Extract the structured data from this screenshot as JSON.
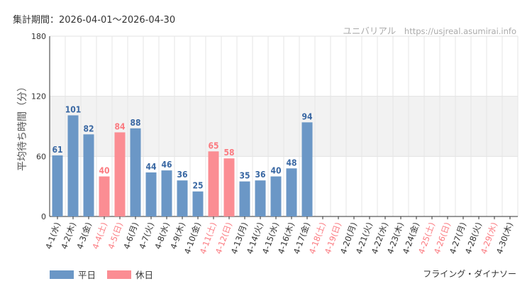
{
  "period_label": "集計期間：2026-04-01～2026-04-30",
  "site": {
    "name": "ユニバリアル",
    "url": "https://usjreal.asumirai.info"
  },
  "attraction_name": "フライング・ダイナソー",
  "colors": {
    "weekday": "#6b97c6",
    "holiday": "#fb8d93",
    "weekday_text": "#3a68a3",
    "holiday_text": "#fb7a80"
  },
  "legend": [
    {
      "label": "平日",
      "kind": "weekday"
    },
    {
      "label": "休日",
      "kind": "holiday"
    }
  ],
  "chart_data": {
    "type": "bar",
    "title": "",
    "xlabel": "",
    "ylabel": "平均待ち時間（分）",
    "ylim": [
      0,
      180
    ],
    "yticks": [
      0,
      60,
      120,
      180
    ],
    "categories": [
      "4-1(水)",
      "4-2(木)",
      "4-3(金)",
      "4-4(土)",
      "4-5(日)",
      "4-6(月)",
      "4-7(火)",
      "4-8(水)",
      "4-9(木)",
      "4-10(金)",
      "4-11(土)",
      "4-12(日)",
      "4-13(月)",
      "4-14(火)",
      "4-15(水)",
      "4-16(木)",
      "4-17(金)",
      "4-18(土)",
      "4-19(日)",
      "4-20(月)",
      "4-21(火)",
      "4-22(水)",
      "4-23(木)",
      "4-24(金)",
      "4-25(土)",
      "4-26(日)",
      "4-27(月)",
      "4-28(火)",
      "4-29(水)",
      "4-30(木)"
    ],
    "values": [
      61,
      101,
      82,
      40,
      84,
      88,
      44,
      46,
      36,
      25,
      65,
      58,
      35,
      36,
      40,
      48,
      94,
      null,
      null,
      null,
      null,
      null,
      null,
      null,
      null,
      null,
      null,
      null,
      null,
      null
    ],
    "day_types": [
      "weekday",
      "weekday",
      "weekday",
      "holiday",
      "holiday",
      "weekday",
      "weekday",
      "weekday",
      "weekday",
      "weekday",
      "holiday",
      "holiday",
      "weekday",
      "weekday",
      "weekday",
      "weekday",
      "weekday",
      "holiday",
      "holiday",
      "weekday",
      "weekday",
      "weekday",
      "weekday",
      "weekday",
      "holiday",
      "holiday",
      "weekday",
      "weekday",
      "holiday",
      "weekday"
    ]
  }
}
